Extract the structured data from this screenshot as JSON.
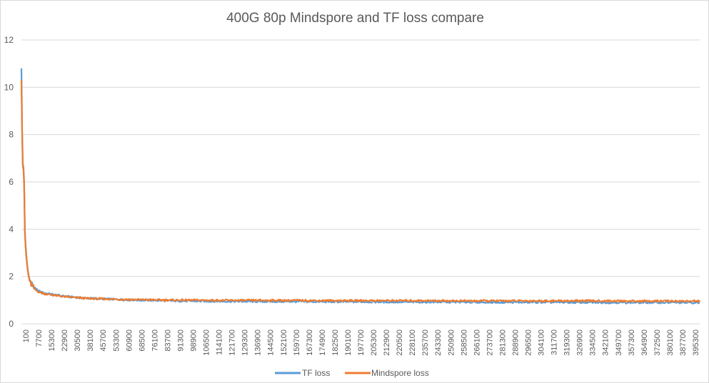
{
  "chart_data": {
    "type": "line",
    "title": "400G 80p Mindspore and TF loss compare",
    "xlabel": "",
    "ylabel": "",
    "ylim": [
      0,
      12
    ],
    "yticks": [
      "0",
      "2",
      "4",
      "6",
      "8",
      "10",
      "12"
    ],
    "x_tick_labels": [
      "100",
      "7700",
      "15300",
      "22900",
      "30500",
      "38100",
      "45700",
      "53300",
      "60900",
      "68500",
      "76100",
      "83700",
      "91300",
      "98900",
      "106500",
      "114100",
      "121700",
      "129300",
      "136900",
      "144500",
      "152100",
      "159700",
      "167300",
      "174900",
      "182500",
      "190100",
      "197700",
      "205300",
      "212900",
      "220500",
      "228100",
      "235700",
      "243300",
      "250900",
      "258500",
      "266100",
      "273700",
      "281300",
      "288900",
      "296500",
      "304100",
      "311700",
      "319300",
      "326900",
      "334500",
      "342100",
      "349700",
      "357300",
      "364900",
      "372500",
      "380100",
      "387700",
      "395300"
    ],
    "xlim": [
      100,
      400000
    ],
    "grid": true,
    "legend_position": "bottom",
    "series": [
      {
        "name": "TF loss",
        "color": "#5b9bd5",
        "x": [
          100,
          500,
          900,
          1300,
          1700,
          2100,
          2500,
          3000,
          3500,
          4000,
          4500,
          5000,
          6000,
          7000,
          8000,
          9000,
          10000,
          12000,
          14000,
          16000,
          18000,
          20000,
          25000,
          30000,
          35000,
          40000,
          50000,
          60000,
          70000,
          80000,
          90000,
          100000,
          120000,
          140000,
          160000,
          180000,
          200000,
          220000,
          240000,
          260000,
          280000,
          300000,
          320000,
          340000,
          360000,
          380000,
          400000
        ],
        "values": [
          10.8,
          8.2,
          6.8,
          6.6,
          6.0,
          4.0,
          3.4,
          2.9,
          2.5,
          2.2,
          2.0,
          1.85,
          1.7,
          1.6,
          1.5,
          1.45,
          1.4,
          1.33,
          1.3,
          1.27,
          1.25,
          1.22,
          1.17,
          1.13,
          1.1,
          1.08,
          1.05,
          1.02,
          1.0,
          0.99,
          0.97,
          0.96,
          0.95,
          0.94,
          0.94,
          0.93,
          0.93,
          0.92,
          0.92,
          0.92,
          0.91,
          0.91,
          0.91,
          0.9,
          0.9,
          0.9,
          0.89
        ]
      },
      {
        "name": "Mindspore loss",
        "color": "#ed7d31",
        "x": [
          100,
          500,
          900,
          1300,
          1700,
          2100,
          2500,
          3000,
          3500,
          4000,
          4500,
          5000,
          6000,
          7000,
          8000,
          9000,
          10000,
          12000,
          14000,
          16000,
          18000,
          20000,
          25000,
          30000,
          35000,
          40000,
          50000,
          60000,
          70000,
          80000,
          90000,
          100000,
          120000,
          140000,
          160000,
          180000,
          200000,
          220000,
          240000,
          260000,
          280000,
          300000,
          320000,
          340000,
          360000,
          380000,
          400000
        ],
        "values": [
          10.3,
          8.0,
          6.7,
          6.5,
          5.9,
          3.9,
          3.3,
          2.8,
          2.45,
          2.15,
          1.95,
          1.8,
          1.65,
          1.55,
          1.45,
          1.4,
          1.36,
          1.3,
          1.27,
          1.24,
          1.22,
          1.2,
          1.15,
          1.12,
          1.09,
          1.07,
          1.05,
          1.03,
          1.02,
          1.01,
          1.0,
          1.0,
          0.99,
          0.99,
          0.99,
          0.98,
          0.98,
          0.98,
          0.98,
          0.97,
          0.97,
          0.97,
          0.97,
          0.97,
          0.96,
          0.96,
          0.96
        ]
      }
    ]
  }
}
